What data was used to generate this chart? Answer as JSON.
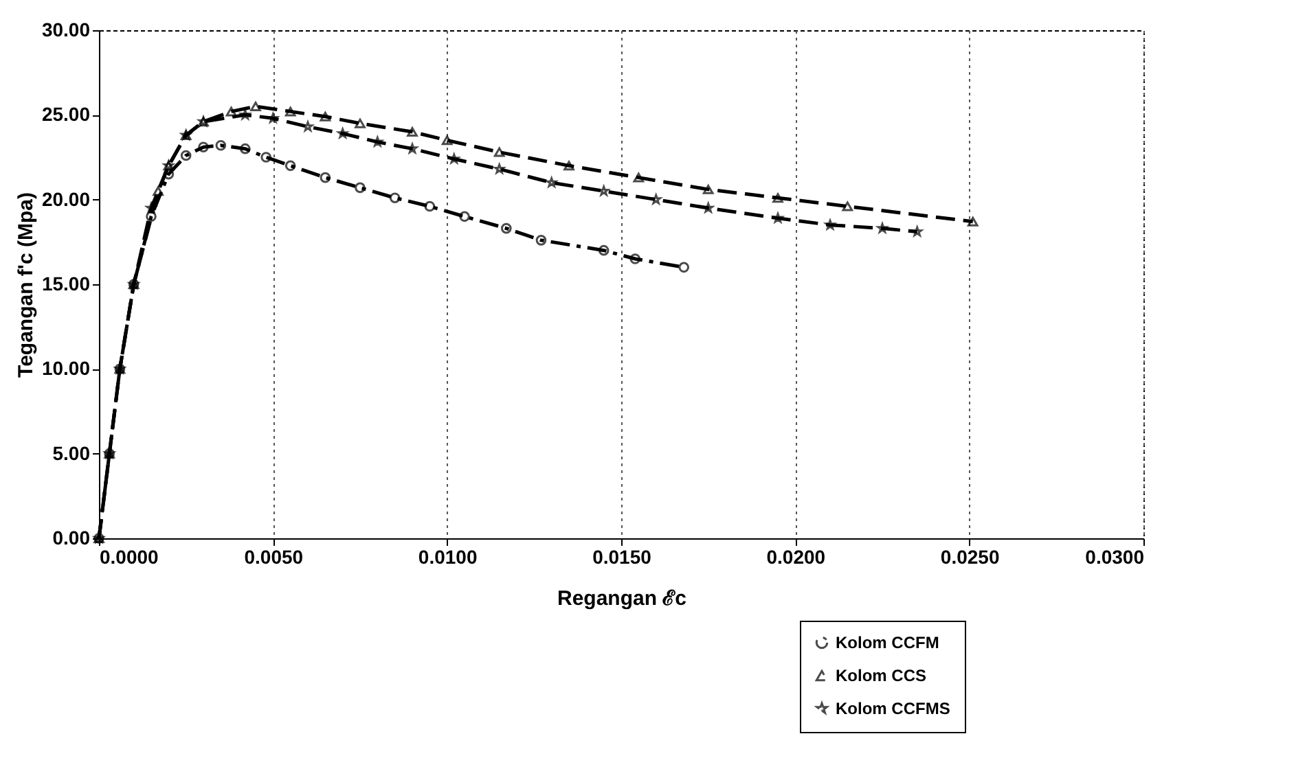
{
  "chart_data": {
    "type": "line",
    "xlabel": "Regangan ℰc",
    "ylabel": "Tegangan f'c (Mpa)",
    "xlim": [
      0,
      0.03
    ],
    "ylim": [
      0,
      30
    ],
    "xticks": [
      {
        "value": 0,
        "label": "0.0000"
      },
      {
        "value": 0.005,
        "label": "0.0050"
      },
      {
        "value": 0.01,
        "label": "0.0100"
      },
      {
        "value": 0.015,
        "label": "0.0150"
      },
      {
        "value": 0.02,
        "label": "0.0200"
      },
      {
        "value": 0.025,
        "label": "0.0250"
      },
      {
        "value": 0.03,
        "label": "0.0300"
      }
    ],
    "yticks": [
      {
        "value": 0,
        "label": "0.00"
      },
      {
        "value": 5,
        "label": "5.00"
      },
      {
        "value": 10,
        "label": "10.00"
      },
      {
        "value": 15,
        "label": "15.00"
      },
      {
        "value": 20,
        "label": "20.00"
      },
      {
        "value": 25,
        "label": "25.00"
      },
      {
        "value": 30,
        "label": "30.00"
      }
    ],
    "grid": "x",
    "legend": "bottom right",
    "series": [
      {
        "name": "Kolom CCFM",
        "color": "#000000",
        "marker": "circle",
        "line_style": "dashdot",
        "x": [
          0,
          0.0003,
          0.0006,
          0.001,
          0.0015,
          0.002,
          0.0025,
          0.003,
          0.0035,
          0.0042,
          0.0048,
          0.0055,
          0.0065,
          0.0075,
          0.0085,
          0.0095,
          0.0105,
          0.0117,
          0.0127,
          0.0145,
          0.0154,
          0.0168
        ],
        "values": [
          0,
          5,
          10,
          15,
          19,
          21.5,
          22.6,
          23.1,
          23.2,
          23,
          22.5,
          22,
          21.3,
          20.7,
          20.1,
          19.6,
          19,
          18.3,
          17.6,
          17,
          16.5,
          16
        ]
      },
      {
        "name": "Kolom CCS",
        "color": "#000000",
        "marker": "triangle",
        "line_style": "dashed",
        "x": [
          0,
          0.0003,
          0.0006,
          0.001,
          0.0017,
          0.002,
          0.0025,
          0.003,
          0.0038,
          0.0045,
          0.0055,
          0.0065,
          0.0075,
          0.009,
          0.01,
          0.0115,
          0.0135,
          0.0155,
          0.0175,
          0.0195,
          0.0215,
          0.0251
        ],
        "values": [
          0,
          5,
          10,
          15,
          20.5,
          22,
          23.8,
          24.6,
          25.2,
          25.5,
          25.2,
          24.9,
          24.5,
          24,
          23.5,
          22.8,
          22,
          21.3,
          20.6,
          20.1,
          19.6,
          18.7
        ]
      },
      {
        "name": "Kolom CCFMS",
        "color": "#000000",
        "marker": "star",
        "line_style": "dashed",
        "x": [
          0,
          0.0003,
          0.0006,
          0.001,
          0.0015,
          0.002,
          0.0025,
          0.003,
          0.0042,
          0.005,
          0.006,
          0.007,
          0.008,
          0.009,
          0.0102,
          0.0115,
          0.013,
          0.0145,
          0.016,
          0.0175,
          0.0195,
          0.021,
          0.0225,
          0.0235
        ],
        "values": [
          0,
          5,
          10,
          15,
          19.5,
          22,
          23.8,
          24.6,
          25,
          24.8,
          24.3,
          23.9,
          23.4,
          23,
          22.4,
          21.8,
          21,
          20.5,
          20,
          19.5,
          18.9,
          18.5,
          18.3,
          18.1
        ]
      }
    ]
  }
}
